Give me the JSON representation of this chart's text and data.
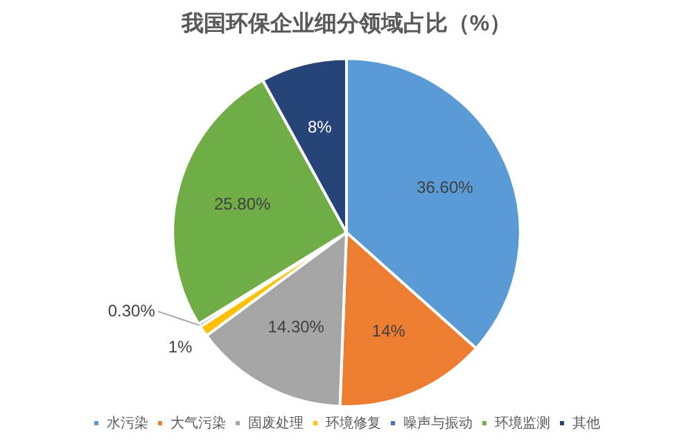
{
  "chart_data": {
    "type": "pie",
    "title": "我国环保企业细分领域占比（%）",
    "categories": [
      "水污染",
      "大气污染",
      "固废处理",
      "环境修复",
      "噪声与振动",
      "环境监测",
      "其他"
    ],
    "values": [
      36.6,
      14,
      14.3,
      1,
      0.3,
      25.8,
      8
    ],
    "value_labels": [
      "36.60%",
      "14%",
      "14.30%",
      "1%",
      "0.30%",
      "25.80%",
      "8%"
    ],
    "colors": [
      "#5b9bd5",
      "#ed7d31",
      "#a5a5a5",
      "#ffc000",
      "#4472c4",
      "#70ad47",
      "#264478"
    ],
    "legend": "bottom"
  }
}
